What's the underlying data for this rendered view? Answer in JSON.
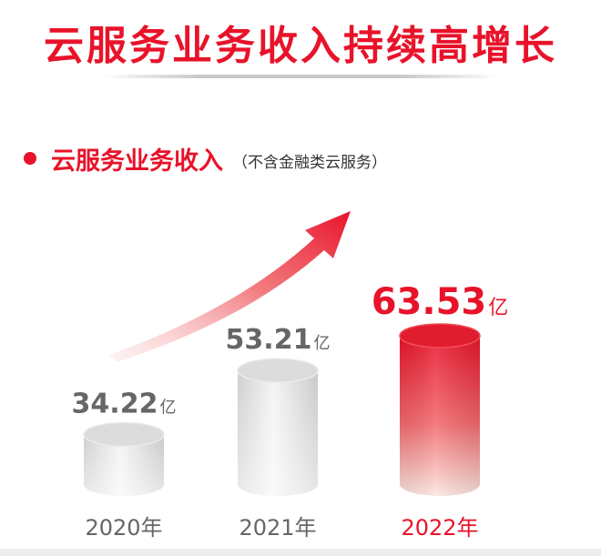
{
  "title": "云服务业务收入持续高增长",
  "section": {
    "label": "云服务业务收入",
    "note": "（不含金融类云服务）"
  },
  "colors": {
    "accent": "#e8132a",
    "gray_bar": "#d2d2d2",
    "gray_text": "#777777"
  },
  "chart_data": {
    "type": "bar",
    "categories": [
      "2020年",
      "2021年",
      "2022年"
    ],
    "values": [
      34.22,
      53.21,
      63.53
    ],
    "value_labels": [
      "34.22",
      "53.21",
      "63.53"
    ],
    "unit": "亿",
    "highlight_index": 2,
    "title": "",
    "xlabel": "",
    "ylabel": ""
  }
}
